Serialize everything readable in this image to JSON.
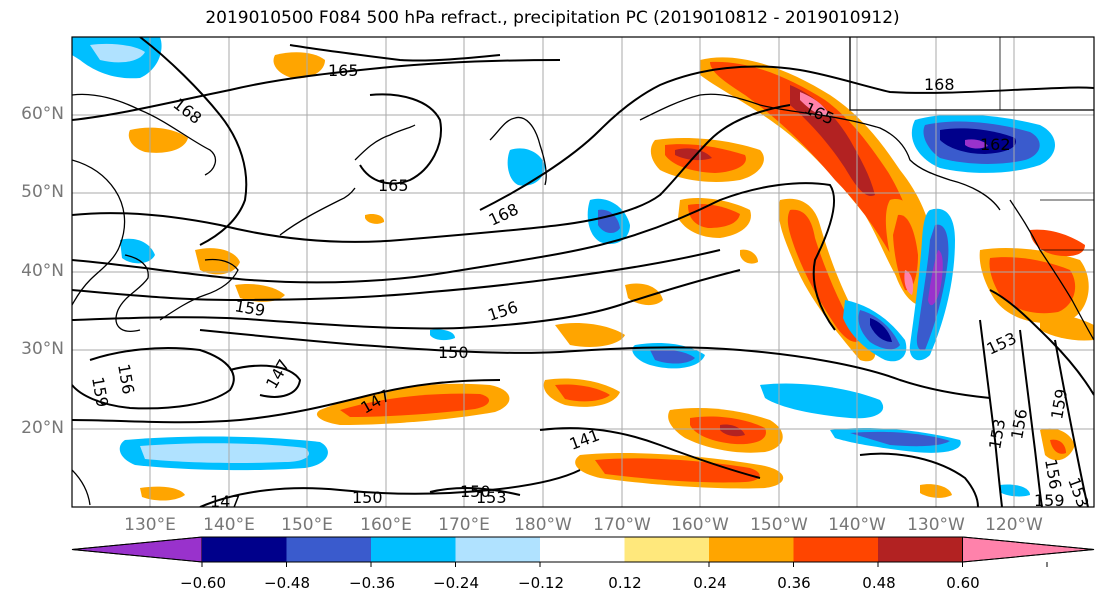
{
  "title": "2019010500 F084 500 hPa refract., precipitation PC (2019010812 - 2019010912)",
  "map": {
    "lat_labels": [
      "60°N",
      "50°N",
      "40°N",
      "30°N",
      "20°N"
    ],
    "lon_labels": [
      "130°E",
      "140°E",
      "150°E",
      "160°E",
      "170°E",
      "180°W",
      "170°W",
      "160°W",
      "150°W",
      "140°W",
      "130°W",
      "120°W"
    ],
    "contour_labels": [
      "165",
      "168",
      "168",
      "165",
      "168",
      "165",
      "162",
      "168",
      "159",
      "156",
      "159",
      "156",
      "150",
      "147",
      "147",
      "153",
      "141",
      "156",
      "159",
      "153",
      "147",
      "150",
      "150",
      "153",
      "153",
      "156",
      "159"
    ],
    "shading_colors": {
      "neg_060": "#9932CC",
      "neg_048": "#00008B",
      "neg_036": "#3A5BCD",
      "neg_024": "#00BFFF",
      "neg_012": "#B0E2FF",
      "neutral": "#FFFFFF",
      "pos_012": "#FFE87C",
      "pos_024": "#FFA500",
      "pos_036": "#FF4500",
      "pos_048": "#B22222",
      "pos_060": "#FF82AB"
    }
  },
  "colorbar": {
    "tick_labels": [
      "−0.60",
      "−0.48",
      "−0.36",
      "−0.24",
      "−0.12",
      "0.12",
      "0.24",
      "0.36",
      "0.48",
      "0.60"
    ],
    "colors": [
      "#9932CC",
      "#00008B",
      "#3A5BCD",
      "#00BFFF",
      "#B0E2FF",
      "#FFFFFF",
      "#FFE87C",
      "#FFA500",
      "#FF4500",
      "#B22222",
      "#FF82AB"
    ]
  }
}
